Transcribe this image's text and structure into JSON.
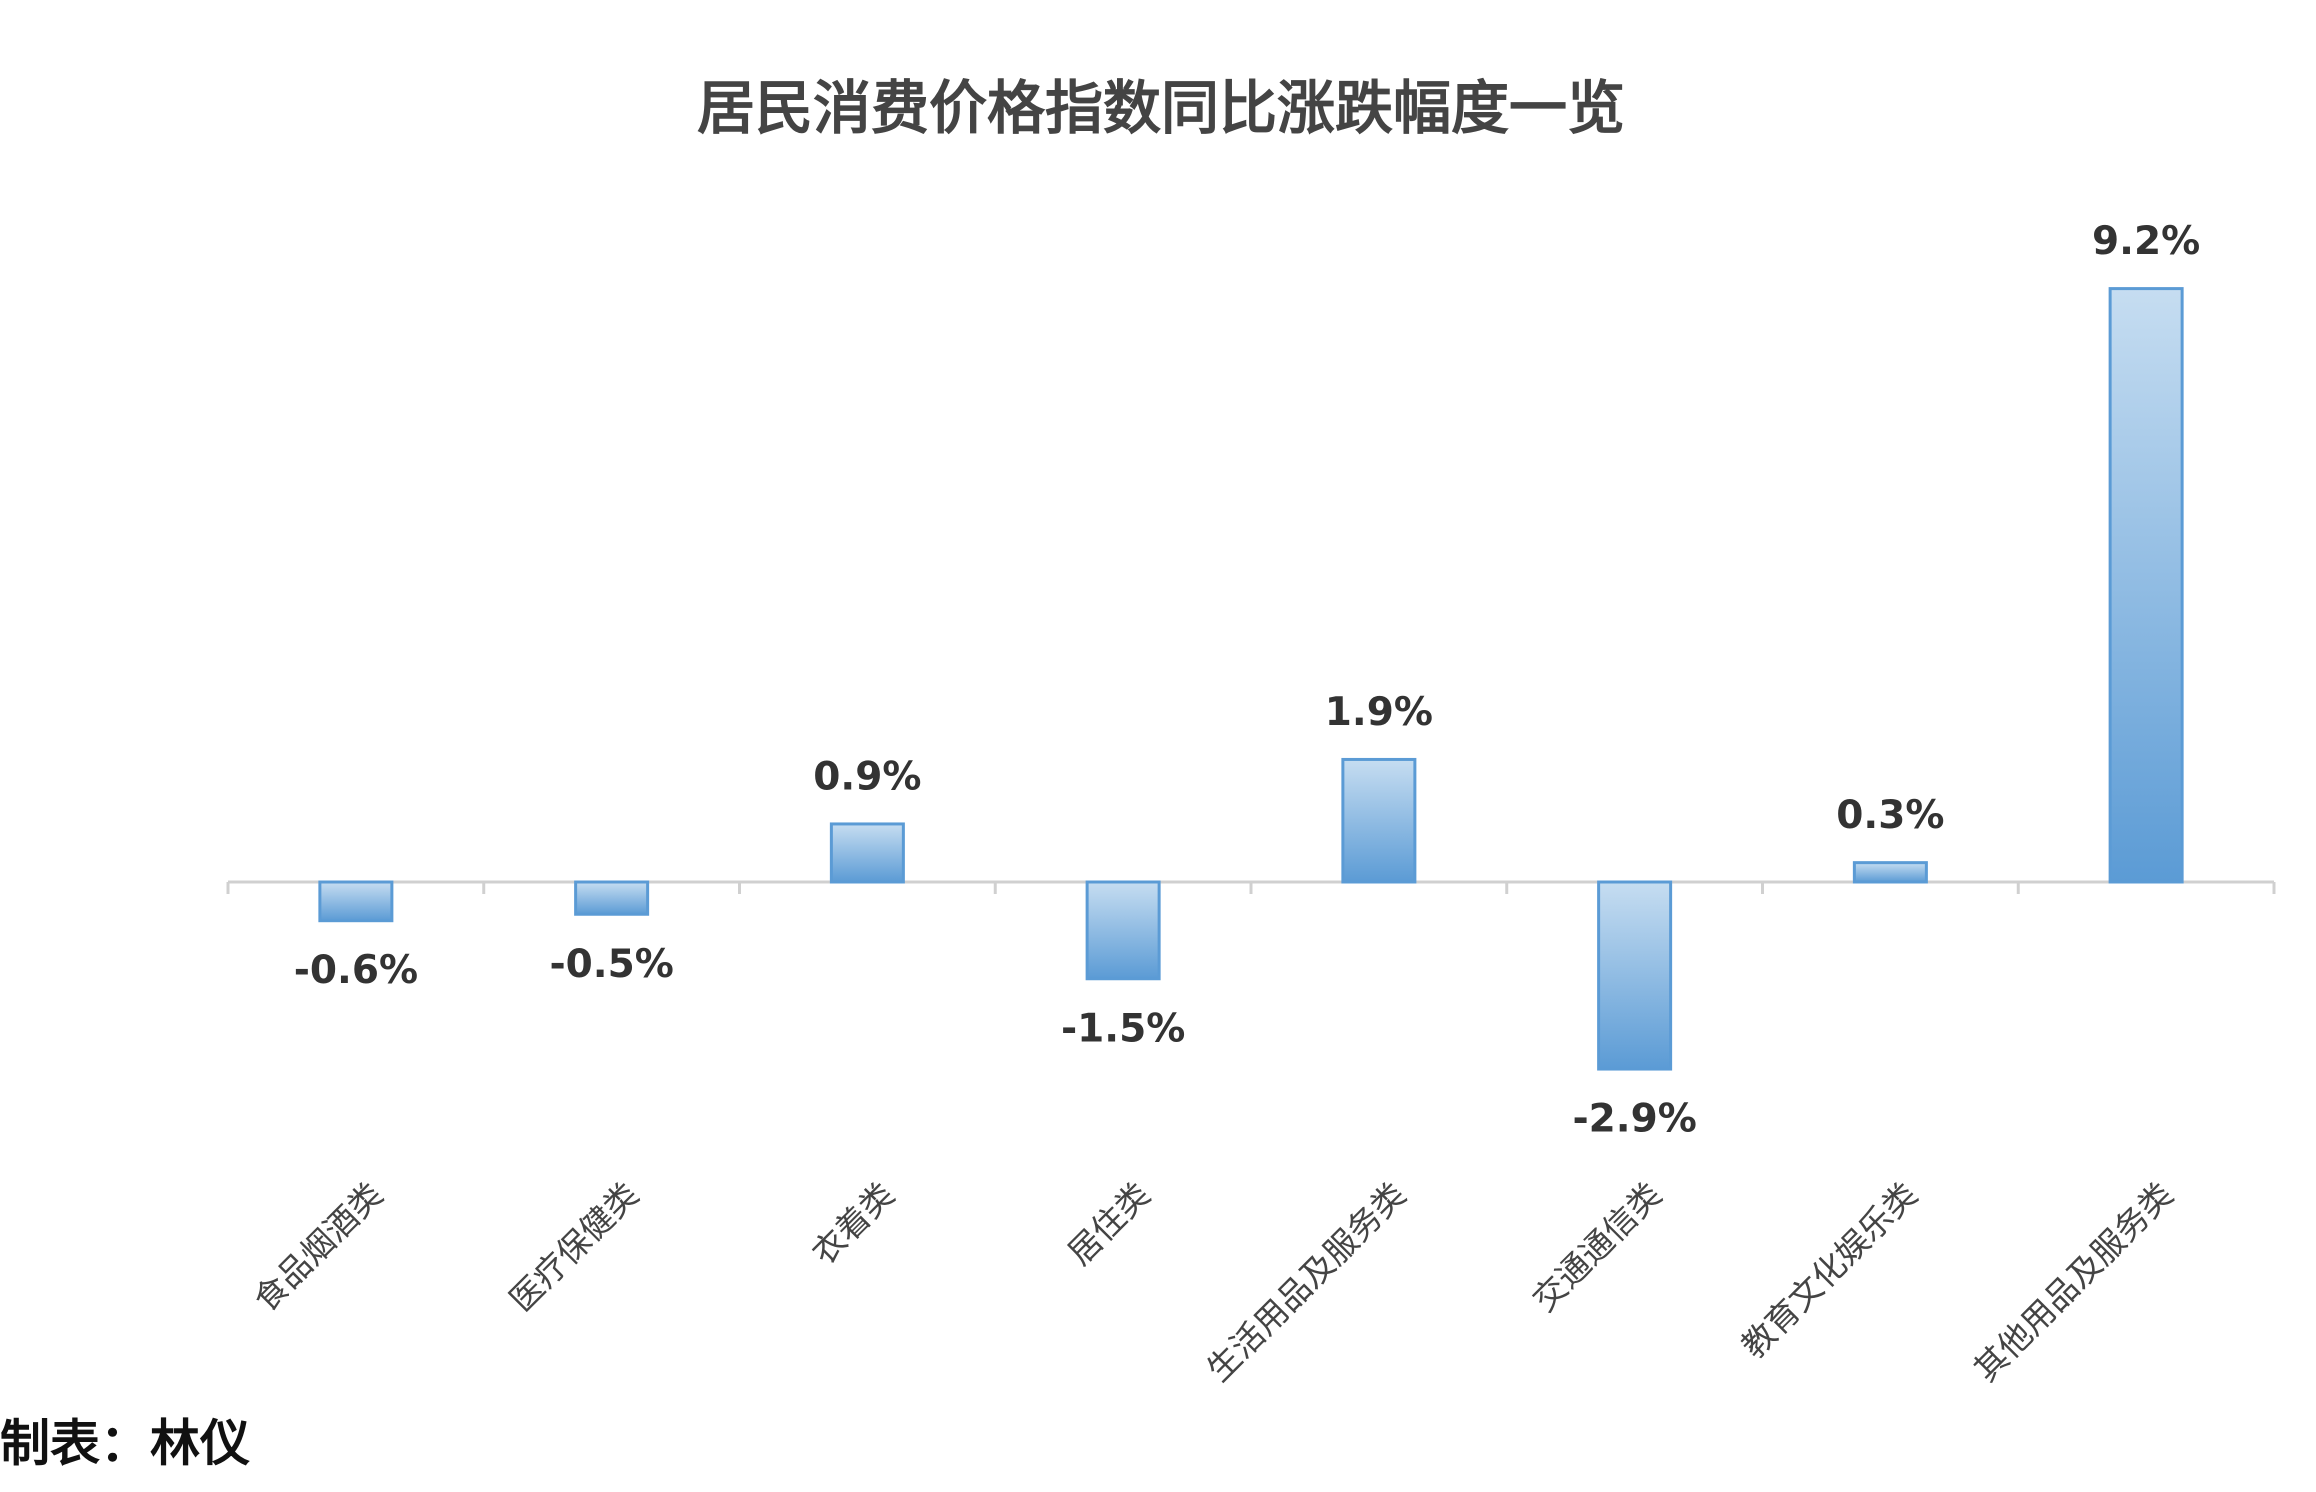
{
  "chart_data": {
    "type": "bar",
    "title": "居民消费价格指数同比涨跌幅度一览",
    "categories": [
      "食品烟酒类",
      "医疗保健类",
      "衣着类",
      "居住类",
      "生活用品及服务类",
      "交通通信类",
      "教育文化娱乐类",
      "其他用品及服务类"
    ],
    "values": [
      -0.6,
      -0.5,
      0.9,
      -1.5,
      1.9,
      -2.9,
      0.3,
      9.2
    ],
    "value_labels": [
      "-0.6%",
      "-0.5%",
      "0.9%",
      "-1.5%",
      "1.9%",
      "-2.9%",
      "0.3%",
      "9.2%"
    ],
    "color": "#5b9bd5"
  },
  "footer": "制表：林仪"
}
